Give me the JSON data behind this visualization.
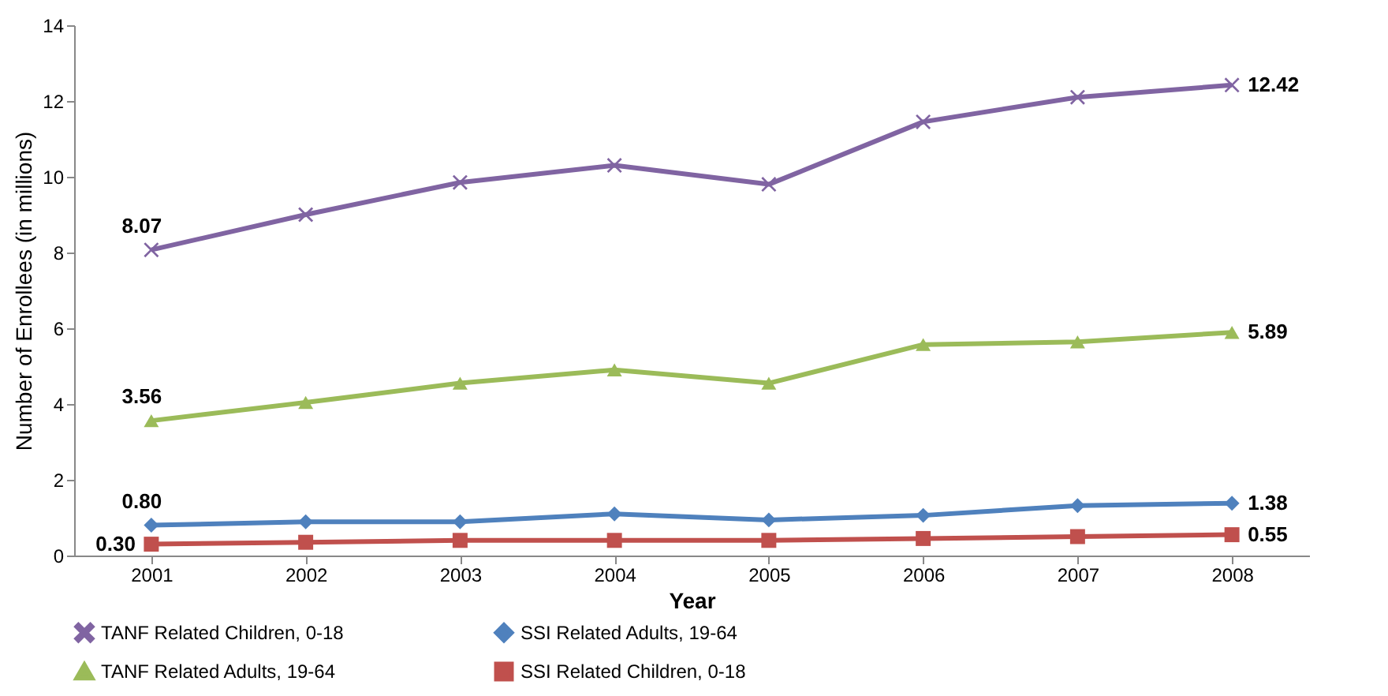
{
  "chart_data": {
    "type": "line",
    "xlabel": "Year",
    "ylabel": "Number of Enrollees (in millions)",
    "categories": [
      "2001",
      "2002",
      "2003",
      "2004",
      "2005",
      "2006",
      "2007",
      "2008"
    ],
    "series": [
      {
        "name": "TANF Related Children, 0-18",
        "color": "#8064a2",
        "marker": "cross",
        "values": [
          8.07,
          9.0,
          9.85,
          10.3,
          9.8,
          11.45,
          12.1,
          12.42
        ],
        "value_labels": [
          "8.07",
          null,
          null,
          null,
          null,
          null,
          null,
          "12.42"
        ]
      },
      {
        "name": "SSI Related Adults, 19-64",
        "color": "#4f81bd",
        "marker": "diamond",
        "values": [
          0.8,
          0.89,
          0.89,
          1.1,
          0.94,
          1.06,
          1.32,
          1.38
        ],
        "value_labels": [
          "0.80",
          null,
          null,
          null,
          null,
          null,
          null,
          "1.38"
        ]
      },
      {
        "name": "TANF Related Adults, 19-64",
        "color": "#9bbb59",
        "marker": "triangle",
        "values": [
          3.56,
          4.04,
          4.55,
          4.9,
          4.55,
          5.57,
          5.64,
          5.89
        ],
        "value_labels": [
          "3.56",
          null,
          null,
          null,
          null,
          null,
          null,
          "5.89"
        ]
      },
      {
        "name": "SSI Related Children, 0-18",
        "color": "#c0504d",
        "marker": "square",
        "values": [
          0.3,
          0.35,
          0.4,
          0.4,
          0.4,
          0.45,
          0.5,
          0.55
        ],
        "value_labels": [
          "0.30",
          null,
          null,
          null,
          null,
          null,
          null,
          "0.55"
        ]
      }
    ],
    "ylim": [
      0,
      14
    ],
    "yticks": [
      0,
      2,
      4,
      6,
      8,
      10,
      12,
      14
    ],
    "legend": "bottom",
    "line_style": "solid"
  }
}
